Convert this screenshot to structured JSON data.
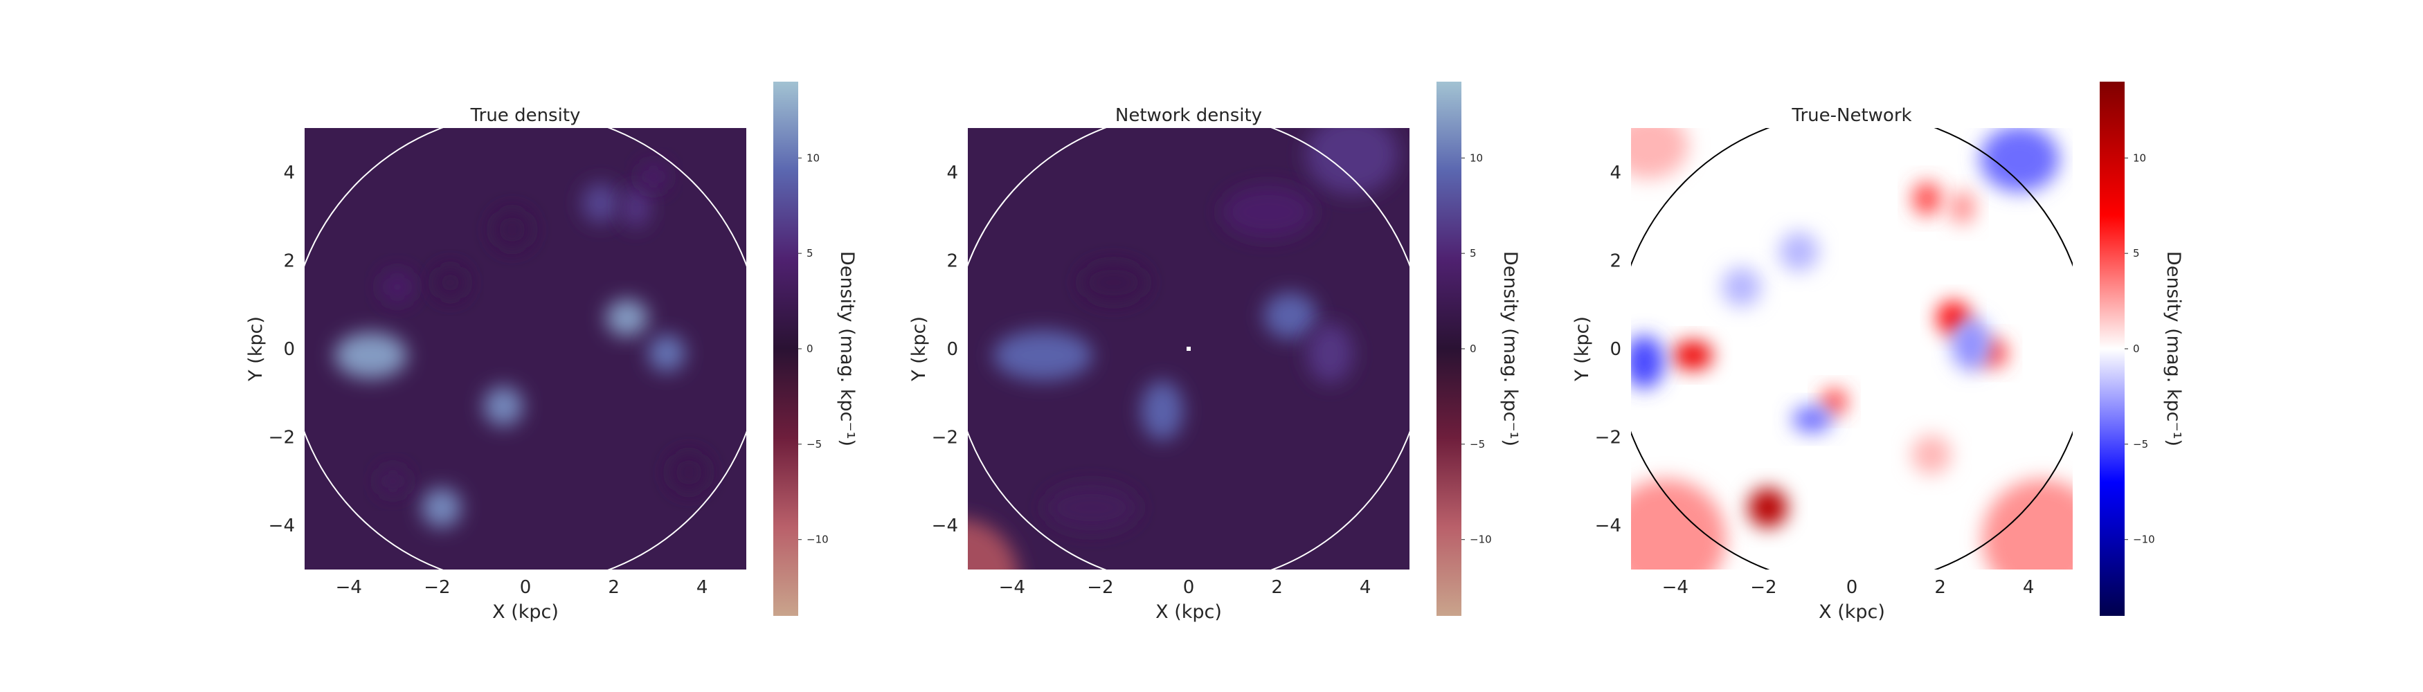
{
  "chart_data": [
    {
      "type": "heatmap",
      "title": "True density",
      "xlabel": "X (kpc)",
      "ylabel": "Y (kpc)",
      "xlim": [
        -5,
        5
      ],
      "ylim": [
        -5,
        5
      ],
      "xticks": [
        "−4",
        "−2",
        "0",
        "2",
        "4"
      ],
      "yticks": [
        "4",
        "2",
        "0",
        "−2",
        "−4"
      ],
      "colormap": "twilight",
      "background_color": "#3b1b4f",
      "circle_color": "#ffffff",
      "colorbar": {
        "label": "Density (mag. kpc⁻¹)",
        "range": [
          -14,
          14
        ],
        "ticks": [
          "10",
          "5",
          "0",
          "−5",
          "−10"
        ],
        "colors": [
          "#c9a48c",
          "#b9606a",
          "#6e1e3c",
          "#2a1233",
          "#4f2170",
          "#5b67b0",
          "#a2c2d2"
        ]
      },
      "blobs": [
        {
          "x": -3.5,
          "y": -0.15,
          "value": 12,
          "sx": 0.55,
          "sy": 0.35
        },
        {
          "x": 2.3,
          "y": 0.7,
          "value": 12,
          "sx": 0.32,
          "sy": 0.28
        },
        {
          "x": 3.2,
          "y": -0.1,
          "value": 10,
          "sx": 0.28,
          "sy": 0.28
        },
        {
          "x": -0.5,
          "y": -1.3,
          "value": 11,
          "sx": 0.3,
          "sy": 0.3
        },
        {
          "x": -1.9,
          "y": -3.6,
          "value": 11,
          "sx": 0.3,
          "sy": 0.3
        },
        {
          "x": 1.7,
          "y": 3.3,
          "value": 7,
          "sx": 0.28,
          "sy": 0.3
        },
        {
          "x": 2.5,
          "y": 3.2,
          "value": 6,
          "sx": 0.22,
          "sy": 0.3
        },
        {
          "x": 2.9,
          "y": 3.9,
          "value": 4,
          "sx": 0.22,
          "sy": 0.22
        },
        {
          "x": -2.9,
          "y": 1.4,
          "value": 4,
          "sx": 0.25,
          "sy": 0.25
        },
        {
          "x": -3.0,
          "y": -3.0,
          "value": 3,
          "sx": 0.22,
          "sy": 0.22
        },
        {
          "x": -0.3,
          "y": 2.7,
          "value": 2,
          "sx": 0.3,
          "sy": 0.3
        },
        {
          "x": 3.7,
          "y": -2.8,
          "value": 2,
          "sx": 0.3,
          "sy": 0.3
        },
        {
          "x": -1.7,
          "y": 1.5,
          "value": 2,
          "sx": 0.25,
          "sy": 0.25
        }
      ]
    },
    {
      "type": "heatmap",
      "title": "Network density",
      "xlabel": "X (kpc)",
      "ylabel": "Y (kpc)",
      "xlim": [
        -5,
        5
      ],
      "ylim": [
        -5,
        5
      ],
      "xticks": [
        "−4",
        "−2",
        "0",
        "2",
        "4"
      ],
      "yticks": [
        "4",
        "2",
        "0",
        "−2",
        "−4"
      ],
      "colormap": "twilight",
      "background_color": "#3b1b4f",
      "circle_color": "#ffffff",
      "colorbar": {
        "label": "Density (mag. kpc⁻¹)",
        "range": [
          -14,
          14
        ],
        "ticks": [
          "10",
          "5",
          "0",
          "−5",
          "−10"
        ],
        "colors": [
          "#c9a48c",
          "#b9606a",
          "#6e1e3c",
          "#2a1233",
          "#4f2170",
          "#5b67b0",
          "#a2c2d2"
        ]
      },
      "blobs": [
        {
          "x": -3.3,
          "y": -0.15,
          "value": 9,
          "sx": 0.75,
          "sy": 0.38
        },
        {
          "x": 2.3,
          "y": 0.75,
          "value": 9,
          "sx": 0.4,
          "sy": 0.35
        },
        {
          "x": 3.2,
          "y": -0.1,
          "value": 6,
          "sx": 0.35,
          "sy": 0.45
        },
        {
          "x": -0.6,
          "y": -1.4,
          "value": 9,
          "sx": 0.32,
          "sy": 0.45
        },
        {
          "x": 1.8,
          "y": 3.1,
          "value": 4,
          "sx": 0.7,
          "sy": 0.4
        },
        {
          "x": 3.7,
          "y": 4.4,
          "value": 6,
          "sx": 0.7,
          "sy": 0.6
        },
        {
          "x": -2.2,
          "y": -3.6,
          "value": 3,
          "sx": 0.7,
          "sy": 0.35
        },
        {
          "x": -1.7,
          "y": 1.5,
          "value": 2,
          "sx": 0.5,
          "sy": 0.3
        },
        {
          "x": -5.2,
          "y": -5.2,
          "value": -8,
          "sx": 0.9,
          "sy": 0.9
        }
      ],
      "center_marker": {
        "x": 0,
        "y": 0,
        "color": "#ffffff"
      }
    },
    {
      "type": "heatmap",
      "title": "True-Network",
      "xlabel": "X (kpc)",
      "ylabel": "Y (kpc)",
      "xlim": [
        -5,
        5
      ],
      "ylim": [
        -5,
        5
      ],
      "xticks": [
        "−4",
        "−2",
        "0",
        "2",
        "4"
      ],
      "yticks": [
        "4",
        "2",
        "0",
        "−2",
        "−4"
      ],
      "colormap": "seismic",
      "background_color": "#ffffff",
      "circle_color": "#000000",
      "colorbar": {
        "label": "Density (mag. kpc⁻¹)",
        "range": [
          -14,
          14
        ],
        "ticks": [
          "10",
          "5",
          "0",
          "−5",
          "−10"
        ],
        "colors": [
          "#00004c",
          "#0000ff",
          "#ffffff",
          "#ff0000",
          "#800000"
        ]
      },
      "blobs": [
        {
          "x": -1.9,
          "y": -3.6,
          "value": 11,
          "sx": 0.3,
          "sy": 0.3
        },
        {
          "x": -3.6,
          "y": -0.15,
          "value": 8,
          "sx": 0.3,
          "sy": 0.22
        },
        {
          "x": 2.3,
          "y": 0.7,
          "value": 7,
          "sx": 0.25,
          "sy": 0.25
        },
        {
          "x": 3.2,
          "y": -0.1,
          "value": 5,
          "sx": 0.22,
          "sy": 0.22
        },
        {
          "x": 1.7,
          "y": 3.4,
          "value": 5,
          "sx": 0.22,
          "sy": 0.25
        },
        {
          "x": 2.5,
          "y": 3.2,
          "value": 3,
          "sx": 0.2,
          "sy": 0.25
        },
        {
          "x": -0.4,
          "y": -1.2,
          "value": 5,
          "sx": 0.2,
          "sy": 0.2
        },
        {
          "x": -4.7,
          "y": -0.3,
          "value": -5,
          "sx": 0.3,
          "sy": 0.4
        },
        {
          "x": -0.9,
          "y": -1.6,
          "value": -4,
          "sx": 0.3,
          "sy": 0.2
        },
        {
          "x": 3.8,
          "y": 4.3,
          "value": -4,
          "sx": 0.6,
          "sy": 0.5
        },
        {
          "x": 2.7,
          "y": 0.1,
          "value": -3,
          "sx": 0.3,
          "sy": 0.4
        },
        {
          "x": -2.5,
          "y": 1.4,
          "value": -2,
          "sx": 0.3,
          "sy": 0.3
        },
        {
          "x": -4.2,
          "y": -4.3,
          "value": 3,
          "sx": 0.9,
          "sy": 0.9
        },
        {
          "x": 4.3,
          "y": -4.3,
          "value": 3,
          "sx": 0.9,
          "sy": 0.9
        },
        {
          "x": -4.6,
          "y": 4.6,
          "value": 2,
          "sx": 0.6,
          "sy": 0.5
        },
        {
          "x": 1.8,
          "y": -2.4,
          "value": 2,
          "sx": 0.3,
          "sy": 0.3
        },
        {
          "x": -1.2,
          "y": 2.2,
          "value": -2,
          "sx": 0.3,
          "sy": 0.3
        }
      ]
    }
  ]
}
